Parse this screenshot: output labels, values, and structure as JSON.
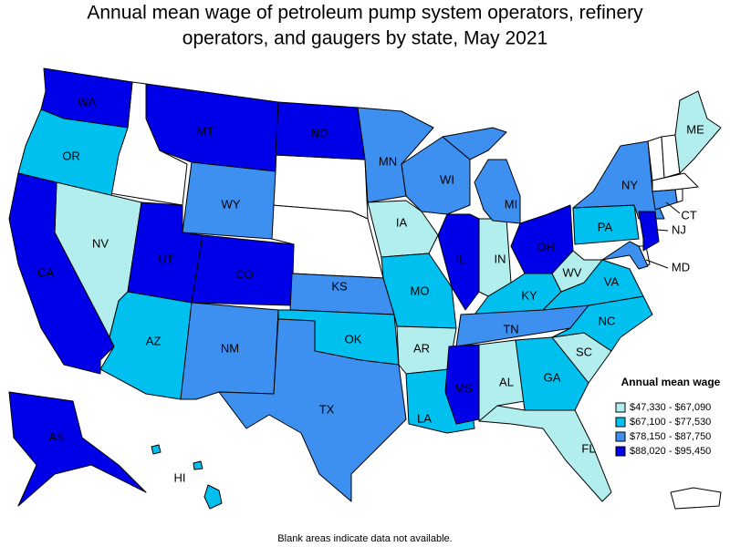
{
  "title_lines": [
    "Annual mean wage of petroleum pump system operators, refinery",
    "operators, and gaugers by state, May 2021"
  ],
  "legend": {
    "title": "Annual mean wage",
    "items": [
      {
        "label": "$47,330 - $67,090",
        "color": "#b2eeee"
      },
      {
        "label": "$67,100 - $77,530",
        "color": "#00c0f0"
      },
      {
        "label": "$78,150 - $87,750",
        "color": "#3d8ff0"
      },
      {
        "label": "$88,020 - $95,450",
        "color": "#0000e8"
      }
    ]
  },
  "states": [
    {
      "label": "WA",
      "class": 3
    },
    {
      "label": "OR",
      "class": 1
    },
    {
      "label": "MT",
      "class": 3
    },
    {
      "label": "ND",
      "class": 3
    },
    {
      "label": "WY",
      "class": 2
    },
    {
      "label": "NV",
      "class": 0
    },
    {
      "label": "CA",
      "class": 3
    },
    {
      "label": "UT",
      "class": 3
    },
    {
      "label": "CO",
      "class": 3
    },
    {
      "label": "AZ",
      "class": 1
    },
    {
      "label": "NM",
      "class": 2
    },
    {
      "label": "KS",
      "class": 2
    },
    {
      "label": "OK",
      "class": 1
    },
    {
      "label": "TX",
      "class": 2
    },
    {
      "label": "MN",
      "class": 2
    },
    {
      "label": "IA",
      "class": 0
    },
    {
      "label": "MO",
      "class": 1
    },
    {
      "label": "AR",
      "class": 0
    },
    {
      "label": "LA",
      "class": 1
    },
    {
      "label": "WI",
      "class": 2
    },
    {
      "label": "IL",
      "class": 3
    },
    {
      "label": "IN",
      "class": 0
    },
    {
      "label": "MI",
      "class": 2
    },
    {
      "label": "OH",
      "class": 3
    },
    {
      "label": "KY",
      "class": 1
    },
    {
      "label": "TN",
      "class": 2
    },
    {
      "label": "MS",
      "class": 3
    },
    {
      "label": "AL",
      "class": 0
    },
    {
      "label": "GA",
      "class": 1
    },
    {
      "label": "FL",
      "class": 0
    },
    {
      "label": "SC",
      "class": 0
    },
    {
      "label": "NC",
      "class": 1
    },
    {
      "label": "VA",
      "class": 1
    },
    {
      "label": "WV",
      "class": 0
    },
    {
      "label": "PA",
      "class": 1
    },
    {
      "label": "NY",
      "class": 2
    },
    {
      "label": "NJ",
      "class": 3
    },
    {
      "label": "MD",
      "class": 2
    },
    {
      "label": "CT",
      "class": 2
    },
    {
      "label": "ME",
      "class": 0
    },
    {
      "label": "AK",
      "class": 3
    },
    {
      "label": "HI",
      "class": 1
    }
  ],
  "note": "Blank areas indicate data not available."
}
